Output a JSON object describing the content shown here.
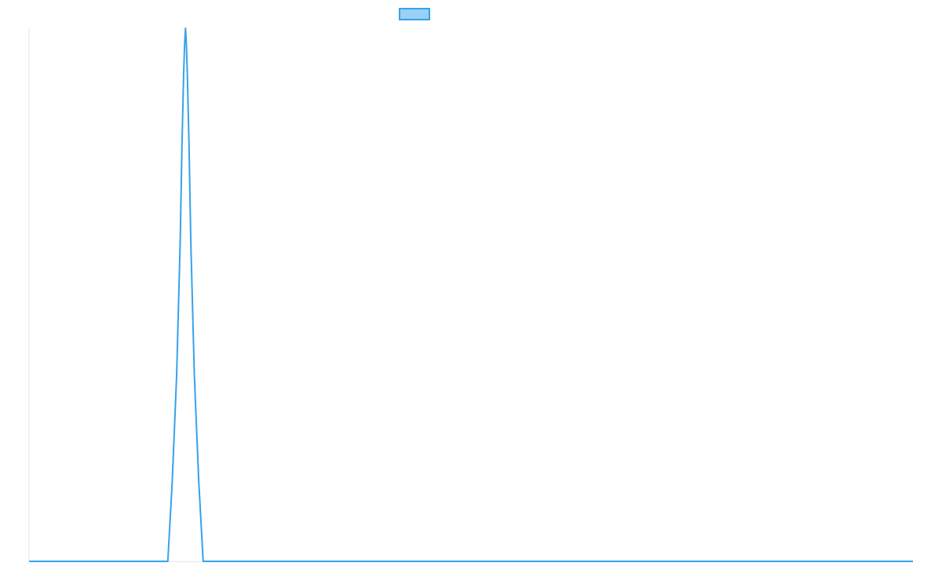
{
  "chart_data": {
    "type": "line",
    "title": "",
    "xlabel": "",
    "ylabel": "",
    "grid": false,
    "legend": {
      "placement": "top-center",
      "show": true
    },
    "xlim": [
      0,
      100
    ],
    "ylim": [
      0,
      1
    ],
    "series": [
      {
        "name": "",
        "color": "#36A2EB",
        "fill": "#9AD0F5",
        "points": [
          [
            0,
            0
          ],
          [
            15.7,
            0
          ],
          [
            16.2,
            0.15
          ],
          [
            16.7,
            0.35
          ],
          [
            17.1,
            0.6
          ],
          [
            17.3,
            0.78
          ],
          [
            17.5,
            0.92
          ],
          [
            17.6,
            0.97
          ],
          [
            17.7,
            1.0
          ],
          [
            17.8,
            0.97
          ],
          [
            17.9,
            0.92
          ],
          [
            18.1,
            0.78
          ],
          [
            18.3,
            0.6
          ],
          [
            18.7,
            0.35
          ],
          [
            19.2,
            0.15
          ],
          [
            19.7,
            0
          ],
          [
            100,
            0
          ]
        ]
      }
    ]
  }
}
